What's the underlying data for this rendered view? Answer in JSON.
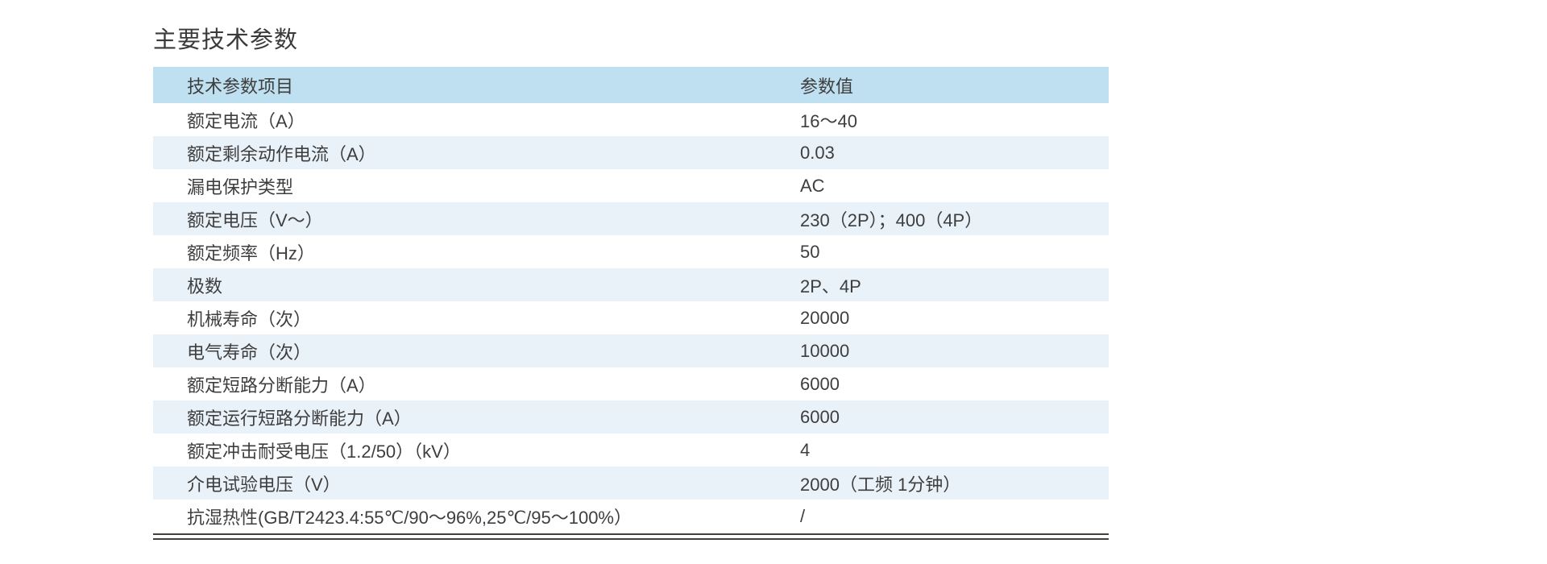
{
  "page": {
    "title": "主要技术参数"
  },
  "colors": {
    "header_bg": "#bfe0f1",
    "stripe_bg": "#e9f1f9",
    "text": "#3e3e3e",
    "bottom_rule": "#463d3d"
  },
  "table": {
    "columns": {
      "item": "技术参数项目",
      "value": "参数值"
    },
    "rows": [
      {
        "item": "额定电流（A）",
        "value": "16～40"
      },
      {
        "item": "额定剩余动作电流（A）",
        "value": "0.03"
      },
      {
        "item": "漏电保护类型",
        "value": "AC"
      },
      {
        "item": "额定电压（V～）",
        "value": "230（2P）；400（4P）"
      },
      {
        "item": "额定频率（Hz）",
        "value": "50"
      },
      {
        "item": "极数",
        "value": "2P、4P"
      },
      {
        "item": "机械寿命（次）",
        "value": "20000"
      },
      {
        "item": "电气寿命（次）",
        "value": "10000"
      },
      {
        "item": "额定短路分断能力（A）",
        "value": "6000"
      },
      {
        "item": "额定运行短路分断能力（A）",
        "value": "6000"
      },
      {
        "item": "额定冲击耐受电压（1.2/50）（kV）",
        "value": "4"
      },
      {
        "item": "介电试验电压（V）",
        "value": "2000（工频 1分钟）"
      },
      {
        "item": "抗湿热性(GB/T2423.4:55℃/90～96%,25℃/95～100%）",
        "value": "/"
      }
    ]
  }
}
